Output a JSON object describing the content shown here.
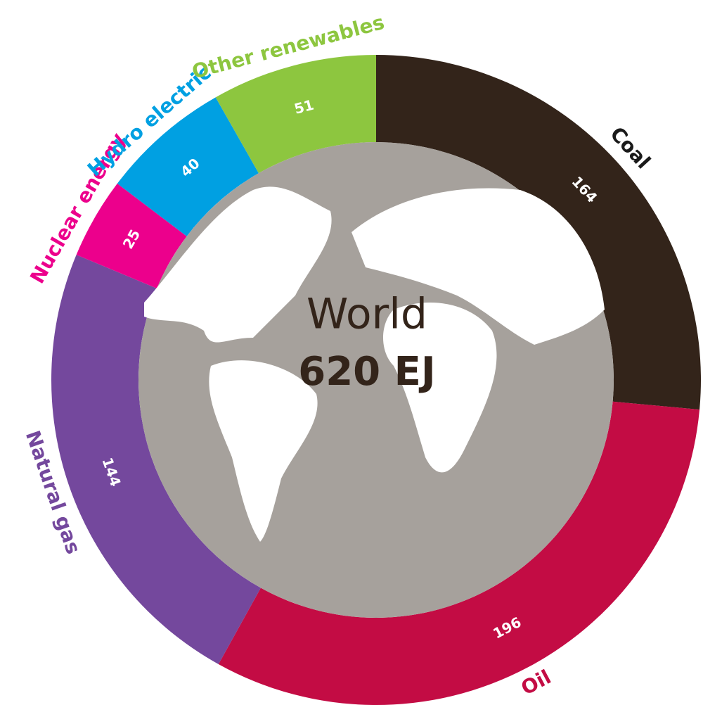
{
  "chart_data": {
    "type": "donut",
    "center_title": "World",
    "center_label": "620 EJ",
    "categories": [
      "Coal",
      "Oil",
      "Natural gas",
      "Nuclear energy",
      "Hydro electric",
      "Other renewables"
    ],
    "values": [
      164,
      196,
      144,
      25,
      40,
      51
    ],
    "colors": [
      "#33241a",
      "#c30c44",
      "#74489d",
      "#ec008c",
      "#00a0e2",
      "#8dc63f"
    ],
    "label_colors": [
      "#1a1a1a",
      "#c30c44",
      "#74489d",
      "#ec008c",
      "#00a0e2",
      "#8dc63f"
    ]
  }
}
